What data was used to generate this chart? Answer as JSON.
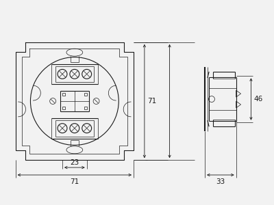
{
  "bg_color": "#f2f2f2",
  "line_color": "#1a1a1a",
  "lw_main": 0.8,
  "lw_thin": 0.5,
  "lw_thick": 1.5,
  "fig_width": 4.0,
  "fig_height": 3.0,
  "dpi": 100,
  "dim_23": "23",
  "dim_71": "71",
  "dim_46": "46",
  "dim_33": "33",
  "font_size": 7.5
}
